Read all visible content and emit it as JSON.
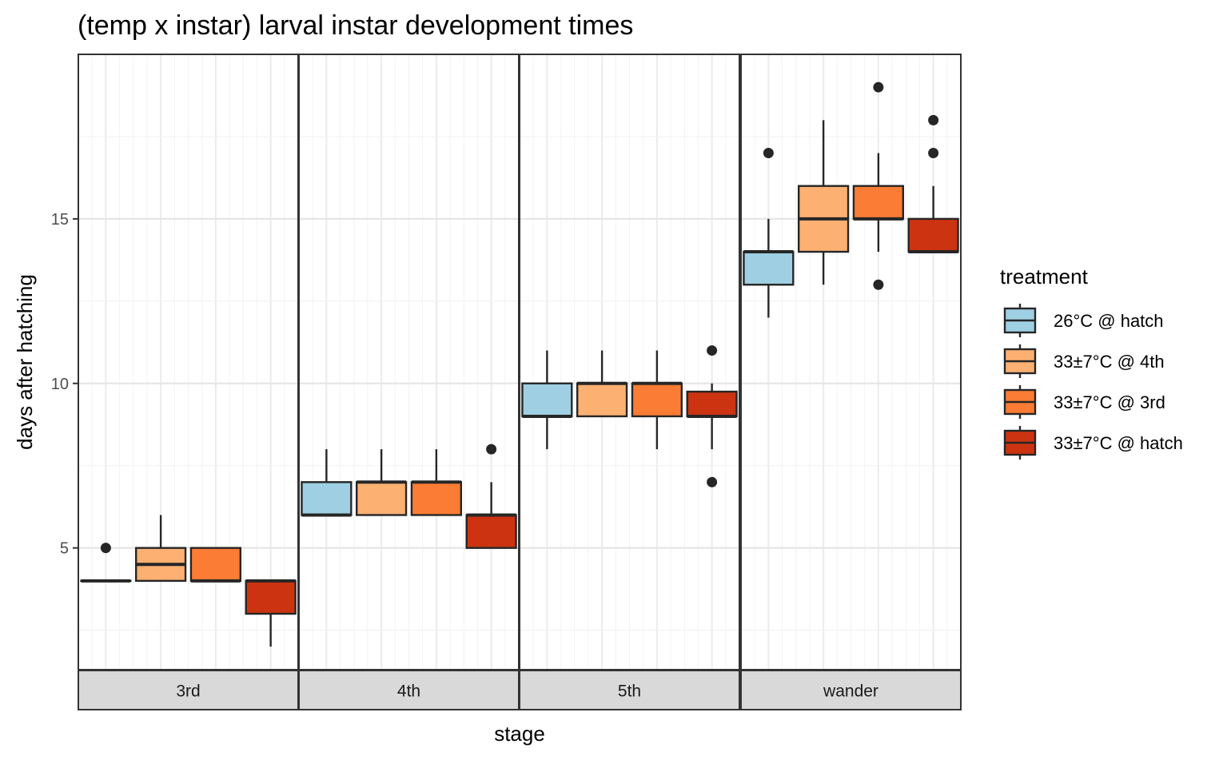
{
  "chart_data": {
    "type": "boxplot",
    "title": "(temp x instar) larval instar development times",
    "xlabel": "stage",
    "ylabel": "days after hatching",
    "ylim": [
      1.3,
      20.0
    ],
    "yticks": [
      5,
      10,
      15
    ],
    "grid": true,
    "legend_position": "right",
    "legend_title": "treatment",
    "facets": [
      "3rd",
      "4th",
      "5th",
      "wander"
    ],
    "series": [
      {
        "name": "26°C @ hatch",
        "color": "#9ecfe3"
      },
      {
        "name": "33±7°C @ 4th",
        "color": "#fcb072"
      },
      {
        "name": "33±7°C @ 3rd",
        "color": "#fb7c34"
      },
      {
        "name": "33±7°C @ hatch",
        "color": "#cc3311"
      }
    ],
    "boxes": [
      {
        "facet": "3rd",
        "series": "26°C @ hatch",
        "min": 4,
        "q1": 4,
        "median": 4,
        "q3": 4,
        "max": 4,
        "outliers": [
          5
        ]
      },
      {
        "facet": "3rd",
        "series": "33±7°C @ 4th",
        "min": 4,
        "q1": 4,
        "median": 4.5,
        "q3": 5,
        "max": 6,
        "outliers": []
      },
      {
        "facet": "3rd",
        "series": "33±7°C @ 3rd",
        "min": 4,
        "q1": 4,
        "median": 4,
        "q3": 5,
        "max": 5,
        "outliers": []
      },
      {
        "facet": "3rd",
        "series": "33±7°C @ hatch",
        "min": 2,
        "q1": 3,
        "median": 4,
        "q3": 4,
        "max": 4,
        "outliers": []
      },
      {
        "facet": "4th",
        "series": "26°C @ hatch",
        "min": 6,
        "q1": 6,
        "median": 6,
        "q3": 7,
        "max": 8,
        "outliers": []
      },
      {
        "facet": "4th",
        "series": "33±7°C @ 4th",
        "min": 6,
        "q1": 6,
        "median": 7,
        "q3": 7,
        "max": 8,
        "outliers": []
      },
      {
        "facet": "4th",
        "series": "33±7°C @ 3rd",
        "min": 6,
        "q1": 6,
        "median": 7,
        "q3": 7,
        "max": 8,
        "outliers": []
      },
      {
        "facet": "4th",
        "series": "33±7°C @ hatch",
        "min": 5,
        "q1": 5,
        "median": 6,
        "q3": 6,
        "max": 7,
        "outliers": [
          8
        ]
      },
      {
        "facet": "5th",
        "series": "26°C @ hatch",
        "min": 8,
        "q1": 9,
        "median": 9,
        "q3": 10,
        "max": 11,
        "outliers": []
      },
      {
        "facet": "5th",
        "series": "33±7°C @ 4th",
        "min": 9,
        "q1": 9,
        "median": 10,
        "q3": 10,
        "max": 11,
        "outliers": []
      },
      {
        "facet": "5th",
        "series": "33±7°C @ 3rd",
        "min": 8,
        "q1": 9,
        "median": 10,
        "q3": 10,
        "max": 11,
        "outliers": []
      },
      {
        "facet": "5th",
        "series": "33±7°C @ hatch",
        "min": 8,
        "q1": 9,
        "median": 9,
        "q3": 9.75,
        "max": 10,
        "outliers": [
          11,
          7
        ]
      },
      {
        "facet": "wander",
        "series": "26°C @ hatch",
        "min": 12,
        "q1": 13,
        "median": 14,
        "q3": 14,
        "max": 15,
        "outliers": [
          17
        ]
      },
      {
        "facet": "wander",
        "series": "33±7°C @ 4th",
        "min": 13,
        "q1": 14,
        "median": 15,
        "q3": 16,
        "max": 18,
        "outliers": []
      },
      {
        "facet": "wander",
        "series": "33±7°C @ 3rd",
        "min": 14,
        "q1": 15,
        "median": 15,
        "q3": 16,
        "max": 17,
        "outliers": [
          19,
          13
        ]
      },
      {
        "facet": "wander",
        "series": "33±7°C @ hatch",
        "min": 14,
        "q1": 14,
        "median": 14,
        "q3": 15,
        "max": 16,
        "outliers": [
          18,
          17
        ]
      }
    ]
  }
}
